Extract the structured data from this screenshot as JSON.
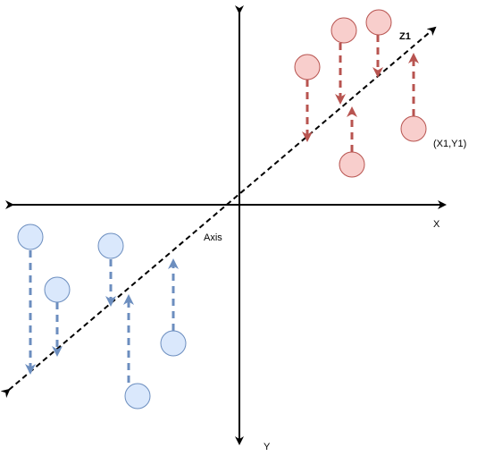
{
  "labels": {
    "x_axis": "X",
    "y_axis": "Y",
    "axis": "Axis",
    "z1": "Z1",
    "point": "(X1,Y1)"
  },
  "colors": {
    "axis_line": "#000000",
    "red_fill": "#f8cecc",
    "red_stroke": "#b85450",
    "red_arrow": "#b85450",
    "blue_fill": "#dae8fc",
    "blue_stroke": "#6c8ebf",
    "blue_arrow": "#6c8ebf"
  }
}
